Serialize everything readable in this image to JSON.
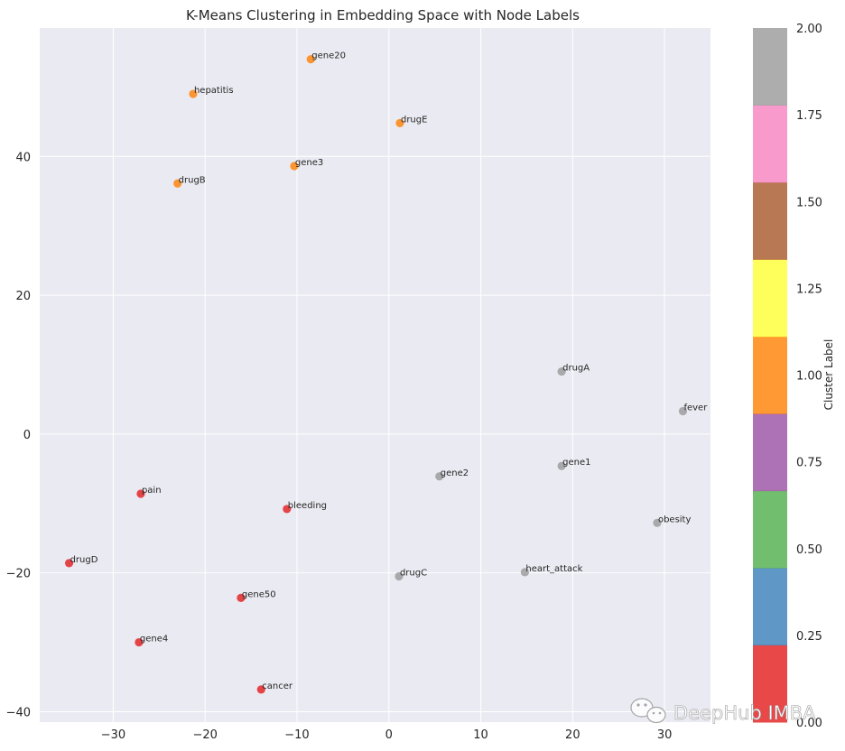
{
  "chart_data": {
    "type": "scatter",
    "title": "K-Means Clustering in Embedding Space with Node Labels",
    "xlabel": "",
    "ylabel": "",
    "xlim": [
      -38,
      35
    ],
    "ylim": [
      -41.5,
      58.5
    ],
    "xticks": [
      -30,
      -20,
      -10,
      0,
      10,
      20,
      30
    ],
    "yticks": [
      -40,
      -20,
      0,
      20,
      40
    ],
    "xtick_labels": [
      "−30",
      "−20",
      "−10",
      "0",
      "10",
      "20",
      "30"
    ],
    "ytick_labels": [
      "−40",
      "−20",
      "0",
      "20",
      "40"
    ],
    "grid": true,
    "points": [
      {
        "label": "gene20",
        "x": -8.5,
        "y": 54.0,
        "cluster": 1
      },
      {
        "label": "hepatitis",
        "x": -21.3,
        "y": 49.0,
        "cluster": 1
      },
      {
        "label": "drugE",
        "x": 1.2,
        "y": 44.8,
        "cluster": 1
      },
      {
        "label": "gene3",
        "x": -10.3,
        "y": 38.6,
        "cluster": 1
      },
      {
        "label": "drugB",
        "x": -23.0,
        "y": 36.1,
        "cluster": 1
      },
      {
        "label": "drugA",
        "x": 18.8,
        "y": 9.0,
        "cluster": 2
      },
      {
        "label": "fever",
        "x": 32.0,
        "y": 3.3,
        "cluster": 2
      },
      {
        "label": "gene1",
        "x": 18.8,
        "y": -4.6,
        "cluster": 2
      },
      {
        "label": "gene2",
        "x": 5.5,
        "y": -6.1,
        "cluster": 2
      },
      {
        "label": "pain",
        "x": -27.0,
        "y": -8.6,
        "cluster": 0
      },
      {
        "label": "bleeding",
        "x": -11.1,
        "y": -10.8,
        "cluster": 0
      },
      {
        "label": "obesity",
        "x": 29.2,
        "y": -12.8,
        "cluster": 2
      },
      {
        "label": "drugD",
        "x": -34.8,
        "y": -18.6,
        "cluster": 0
      },
      {
        "label": "heart_attack",
        "x": 14.8,
        "y": -19.9,
        "cluster": 2
      },
      {
        "label": "drugC",
        "x": 1.1,
        "y": -20.5,
        "cluster": 2
      },
      {
        "label": "gene50",
        "x": -16.1,
        "y": -23.6,
        "cluster": 0
      },
      {
        "label": "gene4",
        "x": -27.2,
        "y": -30.0,
        "cluster": 0
      },
      {
        "label": "cancer",
        "x": -13.9,
        "y": -36.8,
        "cluster": 0
      }
    ],
    "cluster_colors": {
      "0": "#e41a1c",
      "1": "#ff7f00",
      "2": "#999999"
    },
    "colorbar": {
      "label": "Cluster Label",
      "range": [
        0.0,
        2.0
      ],
      "ticks": [
        0.0,
        0.25,
        0.5,
        0.75,
        1.0,
        1.25,
        1.5,
        1.75,
        2.0
      ],
      "tick_labels": [
        "0.00",
        "0.25",
        "0.50",
        "0.75",
        "1.00",
        "1.25",
        "1.50",
        "1.75",
        "2.00"
      ],
      "segment_colors": [
        "#e41a1c",
        "#377eb8",
        "#4daf4a",
        "#984ea3",
        "#ff7f00",
        "#ffff33",
        "#a65628",
        "#f781bf",
        "#999999"
      ]
    },
    "colors": {
      "plot_background": "#eaeaf2",
      "grid": "#ffffff",
      "text": "#262626"
    }
  },
  "watermark": {
    "text": "DeepHub IMBA",
    "icon": "wechat-icon"
  }
}
